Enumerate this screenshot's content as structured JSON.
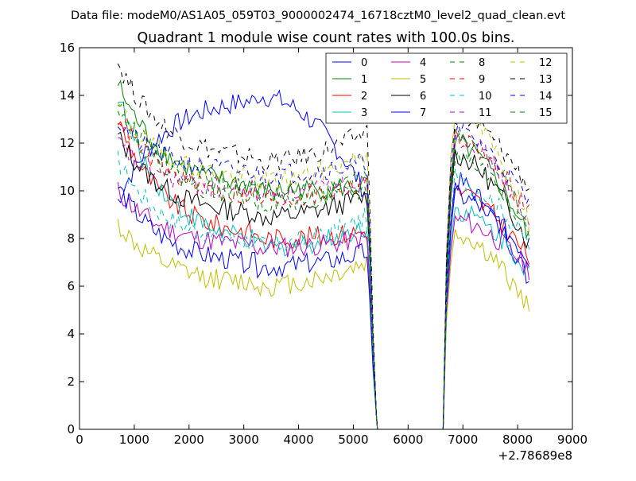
{
  "suptitle": "Data file: modeM0/AS1A05_059T03_9000002474_16718cztM0_level2_quad_clean.evt",
  "chart_data": {
    "type": "line",
    "title": "Quadrant 1 module wise count rates with 100.0s bins.",
    "xlabel": "",
    "ylabel": "",
    "x_offset_label": "+2.78689e8",
    "xlim": [
      0,
      9000
    ],
    "ylim": [
      0,
      16
    ],
    "x_ticks": [
      0,
      1000,
      2000,
      3000,
      4000,
      5000,
      6000,
      7000,
      8000,
      9000
    ],
    "y_ticks": [
      0,
      2,
      4,
      6,
      8,
      10,
      12,
      14,
      16
    ],
    "grid": false,
    "legend_position": "top-right",
    "legend_columns": 4,
    "series": [
      {
        "name": "0",
        "color": "#0000ff",
        "dash": "solid",
        "a": 9.6,
        "b": 14.0,
        "c": 9.8,
        "d": 10.4,
        "e": 6.0
      },
      {
        "name": "1",
        "color": "#008000",
        "dash": "solid",
        "a": 14.5,
        "b": 10.0,
        "c": 10.2,
        "d": 12.0,
        "e": 7.8
      },
      {
        "name": "2",
        "color": "#ff0000",
        "dash": "solid",
        "a": 13.0,
        "b": 8.0,
        "c": 8.3,
        "d": 10.0,
        "e": 7.0
      },
      {
        "name": "3",
        "color": "#00bfbf",
        "dash": "solid",
        "a": 14.1,
        "b": 7.6,
        "c": 8.5,
        "d": 9.2,
        "e": 6.5
      },
      {
        "name": "4",
        "color": "#bf00bf",
        "dash": "solid",
        "a": 10.0,
        "b": 7.6,
        "c": 8.0,
        "d": 8.8,
        "e": 6.6
      },
      {
        "name": "5",
        "color": "#bfbf00",
        "dash": "solid",
        "a": 8.6,
        "b": 6.0,
        "c": 7.0,
        "d": 8.2,
        "e": 4.9
      },
      {
        "name": "6",
        "color": "#000000",
        "dash": "solid",
        "a": 12.3,
        "b": 8.9,
        "c": 9.8,
        "d": 11.5,
        "e": 7.6
      },
      {
        "name": "7",
        "color": "#0000ff",
        "dash": "solid",
        "a": 10.2,
        "b": 6.8,
        "c": 7.4,
        "d": 9.8,
        "e": 7.0
      },
      {
        "name": "8",
        "color": "#008000",
        "dash": "dashed",
        "a": 13.8,
        "b": 9.9,
        "c": 10.5,
        "d": 12.3,
        "e": 8.5
      },
      {
        "name": "9",
        "color": "#ff0000",
        "dash": "dashed",
        "a": 13.2,
        "b": 9.6,
        "c": 10.4,
        "d": 12.2,
        "e": 8.9
      },
      {
        "name": "10",
        "color": "#00bfbf",
        "dash": "dashed",
        "a": 11.3,
        "b": 7.7,
        "c": 8.9,
        "d": 10.5,
        "e": 7.6
      },
      {
        "name": "11",
        "color": "#bf00bf",
        "dash": "dashed",
        "a": 12.0,
        "b": 9.9,
        "c": 10.4,
        "d": 12.5,
        "e": 8.2
      },
      {
        "name": "12",
        "color": "#bfbf00",
        "dash": "dashed",
        "a": 13.6,
        "b": 10.4,
        "c": 11.6,
        "d": 13.5,
        "e": 8.4
      },
      {
        "name": "13",
        "color": "#000000",
        "dash": "dashed",
        "a": 15.4,
        "b": 11.2,
        "c": 12.5,
        "d": 13.2,
        "e": 10.0
      },
      {
        "name": "14",
        "color": "#0000ff",
        "dash": "dashed",
        "a": 12.9,
        "b": 10.7,
        "c": 11.2,
        "d": 12.5,
        "e": 9.3
      },
      {
        "name": "15",
        "color": "#008000",
        "dash": "dashed",
        "a": 13.7,
        "b": 9.5,
        "c": 10.0,
        "d": 11.5,
        "e": 8.2
      }
    ],
    "segments": {
      "first_start": 700,
      "first_end": 5250,
      "drop_end": 5420,
      "gap_end": 6640,
      "rise_end": 6860,
      "second_end": 8250,
      "step": 50,
      "valley_x": 3200,
      "peak_x": 7000
    }
  }
}
